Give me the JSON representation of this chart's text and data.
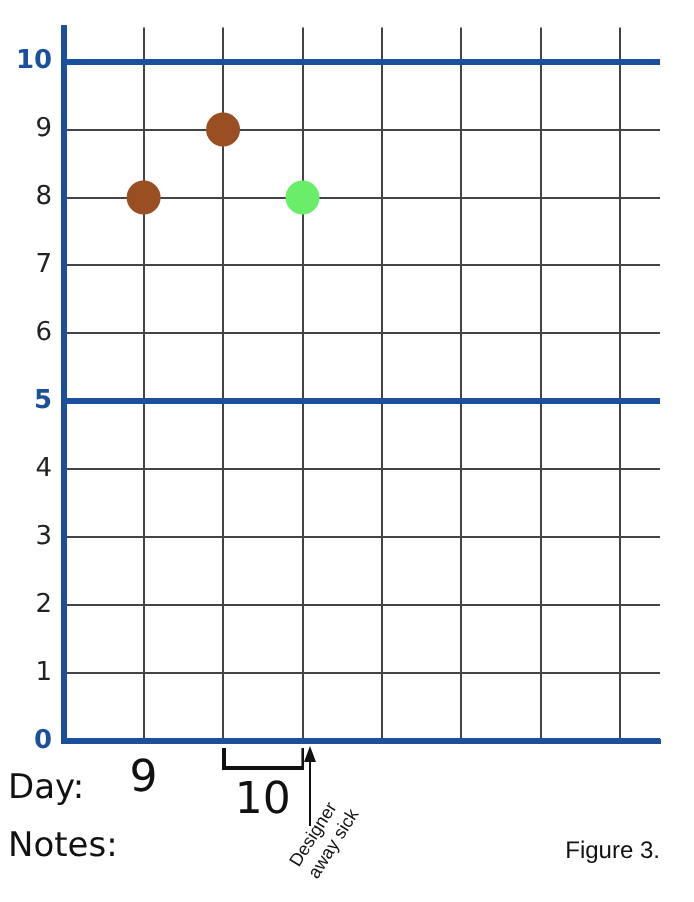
{
  "chart_data": {
    "type": "scatter",
    "xlabel": "Day:",
    "marker": "circle",
    "grid": true,
    "legend": false,
    "categories": [
      "9",
      null,
      null,
      null,
      null,
      null,
      null
    ],
    "ylim": [
      0,
      10.5
    ],
    "yticks": [
      0,
      1,
      2,
      3,
      4,
      5,
      6,
      7,
      8,
      9,
      10
    ],
    "series": [
      {
        "color": "#9a4f22",
        "values": [
          8,
          9,
          null,
          null,
          null,
          null,
          null
        ]
      },
      {
        "color": "#6aee6a",
        "values": [
          null,
          null,
          8,
          null,
          null,
          null,
          null
        ]
      }
    ],
    "annotations": [
      "10",
      "Designer away sick",
      "Notes:",
      "Figure 3."
    ]
  }
}
